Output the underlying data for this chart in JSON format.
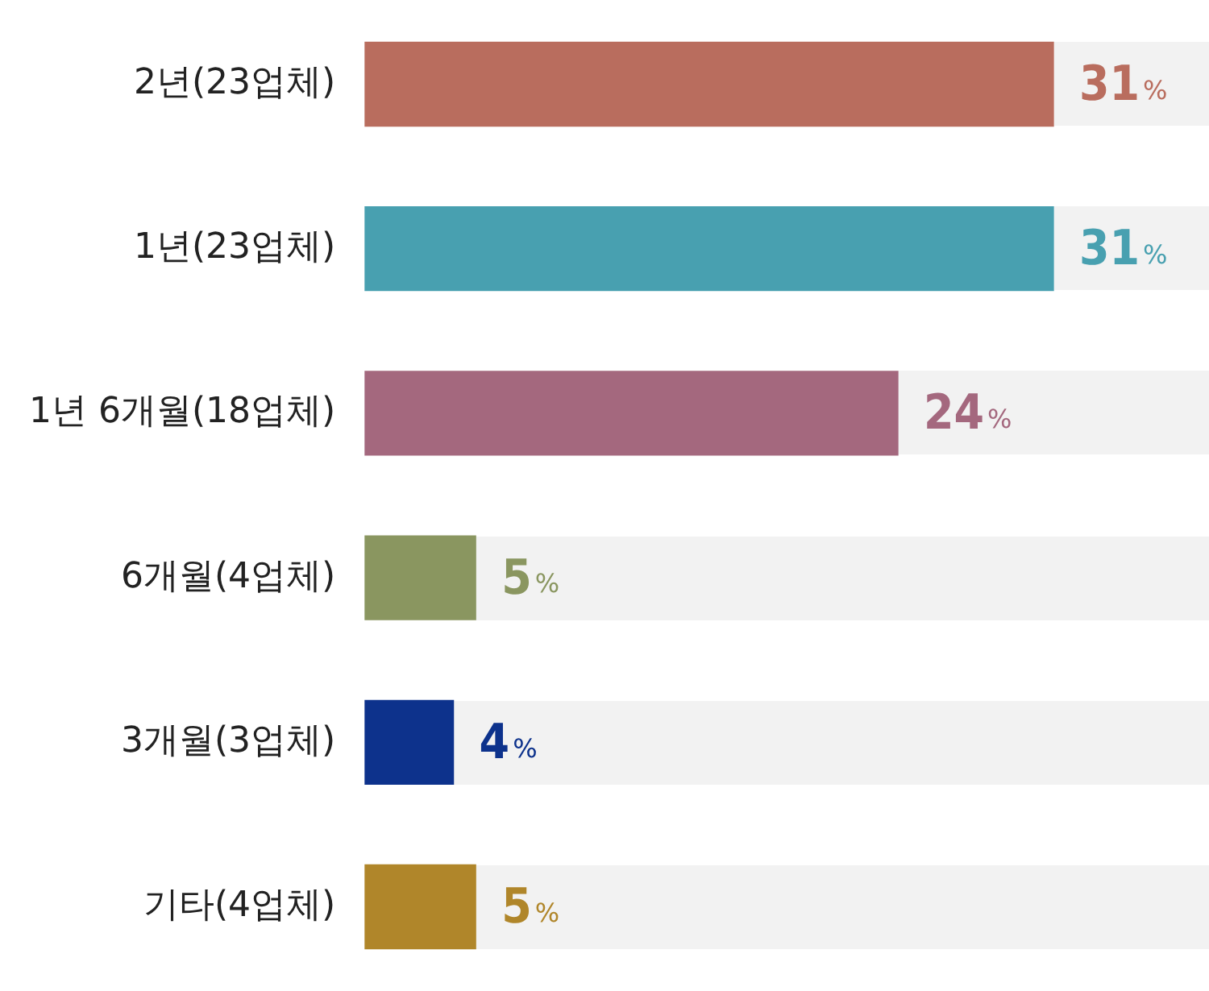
{
  "chart_data": {
    "type": "bar",
    "orientation": "horizontal",
    "categories": [
      "2년(23업체)",
      "1년(23업체)",
      "1년 6개월(18업체)",
      "6개월(4업체)",
      "3개월(3업체)",
      "기타(4업체)"
    ],
    "values": [
      31,
      31,
      24,
      5,
      4,
      5
    ],
    "colors": [
      "#b96d5e",
      "#48a0b0",
      "#a4687e",
      "#8a9660",
      "#0d328c",
      "#b0862a"
    ],
    "value_labels": [
      "31%",
      "31%",
      "24%",
      "5%",
      "4%",
      "5%"
    ],
    "xlim": [
      0,
      38
    ],
    "tick_labels": "y",
    "grid": false,
    "legend": false
  }
}
